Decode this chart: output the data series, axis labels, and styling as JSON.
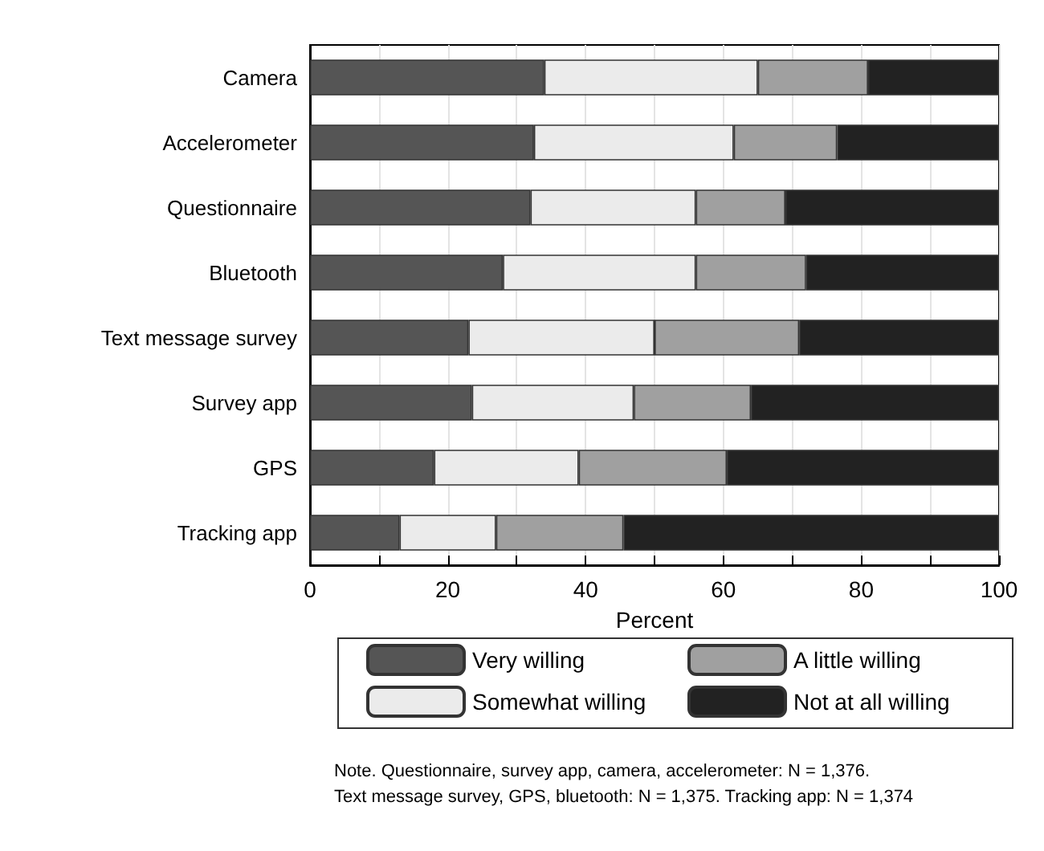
{
  "chart_data": {
    "type": "bar",
    "orientation": "horizontal",
    "stacked": true,
    "categories": [
      "Camera",
      "Accelerometer",
      "Questionnaire",
      "Bluetooth",
      "Text message survey",
      "Survey app",
      "GPS",
      "Tracking app"
    ],
    "series": [
      {
        "name": "Very willing",
        "color": "#555555",
        "values": [
          34,
          32.5,
          32,
          28,
          23,
          23.5,
          18,
          13
        ]
      },
      {
        "name": "Somewhat willing",
        "color": "#ebebeb",
        "values": [
          31,
          29,
          24,
          28,
          27,
          23.5,
          21,
          14
        ]
      },
      {
        "name": "A little willing",
        "color": "#a0a0a0",
        "values": [
          16,
          15,
          13,
          16,
          21,
          17,
          21.5,
          18.5
        ]
      },
      {
        "name": "Not at all willing",
        "color": "#222222",
        "values": [
          19,
          23.5,
          31,
          28,
          29,
          36,
          39.5,
          54.5
        ]
      }
    ],
    "xlabel": "Percent",
    "xlim": [
      0,
      100
    ],
    "xticks": [
      0,
      {
        "value": 10,
        "label": null
      },
      20,
      {
        "value": 30,
        "label": null
      },
      40,
      {
        "value": 50,
        "label": null
      },
      60,
      {
        "value": 70,
        "label": null
      },
      80,
      {
        "value": 90,
        "label": null
      },
      100
    ],
    "grid": "x",
    "legend": "bottom",
    "annotations": [
      "Note. Questionnaire, survey app, camera, accelerometer: N = 1,376.",
      "Text message survey, GPS, bluetooth: N = 1,375. Tracking app: N = 1,374"
    ]
  }
}
